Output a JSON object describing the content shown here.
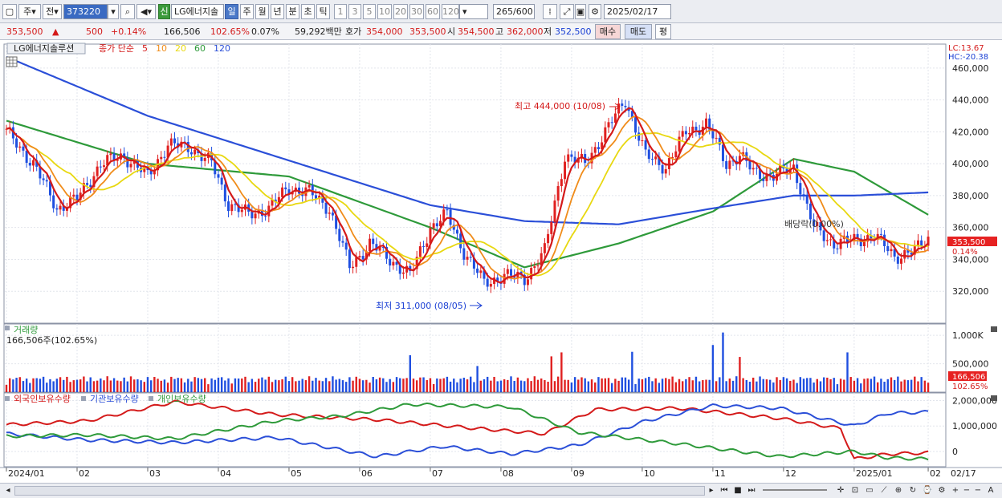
{
  "toolbar": {
    "mode_label": "주",
    "prev_label": "전",
    "stock_code": "373220",
    "badge_label": "신",
    "stock_name": "LG에너지솔",
    "periods": [
      {
        "label": "일",
        "selected": true
      },
      {
        "label": "주",
        "selected": false
      },
      {
        "label": "월",
        "selected": false
      },
      {
        "label": "년",
        "selected": false
      },
      {
        "label": "분",
        "selected": false
      },
      {
        "label": "초",
        "selected": false
      },
      {
        "label": "틱",
        "selected": false
      }
    ],
    "intervals": [
      "1",
      "3",
      "5",
      "10",
      "20",
      "30",
      "60",
      "120"
    ],
    "bar_count": "265",
    "bar_total": "/600",
    "date": "2025/02/17"
  },
  "quote": {
    "price": "353,500",
    "change": "500",
    "change_pct": "+0.14%",
    "volume": "166,506",
    "volume_ratio": "102.65%",
    "turnover": "0.07%",
    "amount": "59,292백만",
    "ask_label": "호가",
    "ask": "354,000",
    "bid": "353,500",
    "open_label": "시",
    "open": "354,500",
    "high_label": "고",
    "high": "362,000",
    "low_label": "저",
    "low": "352,500",
    "buy_label": "매수",
    "sell_label": "매도",
    "eval_label": "평"
  },
  "price_panel": {
    "title": "LG에너지솔루션",
    "ma_title": "종가 단순",
    "ma_periods": [
      {
        "label": "5",
        "color": "#d41a1a"
      },
      {
        "label": "10",
        "color": "#f08c1a"
      },
      {
        "label": "20",
        "color": "#e8d810"
      },
      {
        "label": "60",
        "color": "#2e9a3a"
      },
      {
        "label": "120",
        "color": "#2b4fd8"
      }
    ],
    "lc": "LC:13.67",
    "hc": "HC:-20.38",
    "high_annotation": "최고 444,000 (10/08)",
    "low_annotation": "최저 311,000 (08/05)",
    "dividend_annotation": "배당락(0.00%)",
    "price_tag": "353,500",
    "pct_tag": "0.14%"
  },
  "volume_panel": {
    "title": "거래량",
    "value": "166,506주(102.65%)",
    "tag_value": "166,506",
    "tag_pct": "102.65%"
  },
  "holdings_panel": {
    "labels": [
      {
        "label": "외국인보유수량",
        "color": "#d41a1a"
      },
      {
        "label": "기관보유수량",
        "color": "#2b4fd8"
      },
      {
        "label": "개인보유수량",
        "color": "#2e9a3a"
      }
    ]
  },
  "time_axis": [
    "2024/01",
    "02",
    "03",
    "04",
    "05",
    "06",
    "07",
    "08",
    "09",
    "10",
    "11",
    "12",
    "2025/01",
    "02"
  ],
  "last_date": "02/17",
  "chart_data": [
    {
      "type": "line",
      "ylim": [
        300000,
        475000
      ],
      "yticks": [
        "460,000",
        "440,000",
        "420,000",
        "400,000",
        "380,000",
        "360,000",
        "340,000",
        "320,000"
      ],
      "ytick_values": [
        460000,
        440000,
        420000,
        400000,
        380000,
        360000,
        340000,
        320000
      ],
      "x": [
        0,
        21,
        42,
        63,
        84,
        105,
        126,
        147,
        168,
        189,
        210,
        231,
        252,
        274
      ],
      "close_series": [
        [
          0,
          420000
        ],
        [
          8,
          400000
        ],
        [
          15,
          372000
        ],
        [
          21,
          378000
        ],
        [
          28,
          400000
        ],
        [
          35,
          405000
        ],
        [
          42,
          392000
        ],
        [
          48,
          412000
        ],
        [
          55,
          410000
        ],
        [
          61,
          400000
        ],
        [
          66,
          375000
        ],
        [
          72,
          368000
        ],
        [
          78,
          372000
        ],
        [
          84,
          385000
        ],
        [
          90,
          382000
        ],
        [
          96,
          372000
        ],
        [
          102,
          335000
        ],
        [
          108,
          350000
        ],
        [
          114,
          340000
        ],
        [
          120,
          330000
        ],
        [
          126,
          360000
        ],
        [
          131,
          368000
        ],
        [
          136,
          345000
        ],
        [
          142,
          325000
        ],
        [
          148,
          330000
        ],
        [
          154,
          328000
        ],
        [
          160,
          345000
        ],
        [
          166,
          405000
        ],
        [
          172,
          400000
        ],
        [
          178,
          420000
        ],
        [
          184,
          440000
        ],
        [
          190,
          405000
        ],
        [
          196,
          398000
        ],
        [
          202,
          420000
        ],
        [
          208,
          425000
        ],
        [
          214,
          400000
        ],
        [
          218,
          405000
        ],
        [
          222,
          395000
        ],
        [
          228,
          392000
        ],
        [
          234,
          398000
        ],
        [
          240,
          360000
        ],
        [
          246,
          350000
        ],
        [
          252,
          352000
        ],
        [
          258,
          355000
        ],
        [
          264,
          342000
        ],
        [
          270,
          345000
        ],
        [
          274,
          353500
        ]
      ],
      "ma_series": [
        {
          "name": "60",
          "points": [
            [
              0,
              427000
            ],
            [
              42,
              400000
            ],
            [
              84,
              392000
            ],
            [
              126,
              360000
            ],
            [
              154,
              335000
            ],
            [
              182,
              350000
            ],
            [
              210,
              370000
            ],
            [
              234,
              403000
            ],
            [
              252,
              395000
            ],
            [
              274,
              368000
            ]
          ]
        },
        {
          "name": "120",
          "points": [
            [
              0,
              467000
            ],
            [
              42,
              430000
            ],
            [
              84,
              402000
            ],
            [
              126,
              374000
            ],
            [
              154,
              364000
            ],
            [
              182,
              362000
            ],
            [
              210,
              372000
            ],
            [
              234,
              380000
            ],
            [
              252,
              380000
            ],
            [
              274,
              382000
            ]
          ]
        }
      ]
    },
    {
      "type": "bar",
      "ylim": [
        0,
        1200000
      ],
      "yticks": [
        "1,000K",
        "500,000"
      ],
      "ytick_values": [
        1000000,
        500000
      ],
      "spikes": [
        [
          120,
          650000
        ],
        [
          140,
          460000
        ],
        [
          162,
          630000
        ],
        [
          165,
          700000
        ],
        [
          186,
          710000
        ],
        [
          210,
          830000
        ],
        [
          213,
          1050000
        ],
        [
          218,
          620000
        ],
        [
          250,
          700000
        ],
        [
          274,
          166506
        ]
      ]
    },
    {
      "type": "line",
      "ylim": [
        -600000,
        2300000
      ],
      "yticks": [
        "2,000,000",
        "1,000,000",
        "0"
      ],
      "ytick_values": [
        2000000,
        1000000,
        0
      ],
      "series": [
        {
          "name": "외국인보유수량",
          "points": [
            [
              0,
              1050000
            ],
            [
              24,
              1200000
            ],
            [
              50,
              1950000
            ],
            [
              80,
              1450000
            ],
            [
              110,
              1250000
            ],
            [
              140,
              900000
            ],
            [
              160,
              700000
            ],
            [
              175,
              1650000
            ],
            [
              200,
              1700000
            ],
            [
              230,
              1300000
            ],
            [
              248,
              900000
            ],
            [
              252,
              -300000
            ],
            [
              262,
              -100000
            ],
            [
              274,
              -50000
            ]
          ]
        },
        {
          "name": "기관보유수량",
          "points": [
            [
              0,
              700000
            ],
            [
              24,
              450000
            ],
            [
              50,
              350000
            ],
            [
              80,
              550000
            ],
            [
              110,
              -200000
            ],
            [
              130,
              200000
            ],
            [
              150,
              -100000
            ],
            [
              170,
              250000
            ],
            [
              190,
              1200000
            ],
            [
              210,
              1800000
            ],
            [
              230,
              1700000
            ],
            [
              252,
              1000000
            ],
            [
              262,
              1500000
            ],
            [
              274,
              1550000
            ]
          ]
        },
        {
          "name": "개인보유수량",
          "points": [
            [
              0,
              600000
            ],
            [
              24,
              650000
            ],
            [
              50,
              500000
            ],
            [
              80,
              1200000
            ],
            [
              100,
              1400000
            ],
            [
              120,
              1850000
            ],
            [
              150,
              1750000
            ],
            [
              170,
              750000
            ],
            [
              200,
              300000
            ],
            [
              230,
              -200000
            ],
            [
              252,
              0
            ],
            [
              262,
              -250000
            ],
            [
              274,
              -300000
            ]
          ]
        }
      ]
    }
  ]
}
